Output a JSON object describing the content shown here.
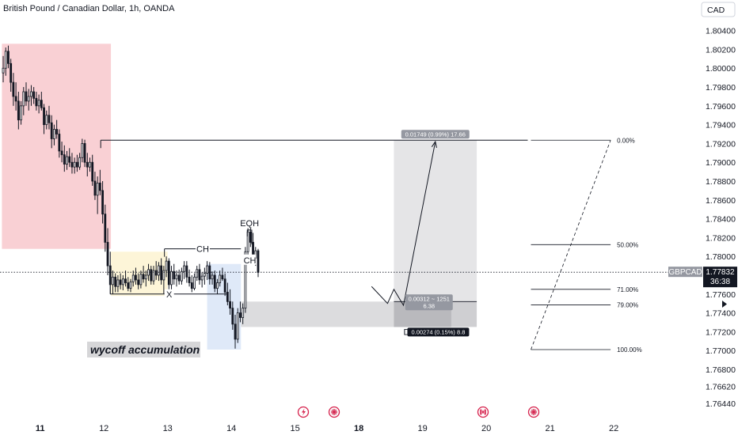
{
  "header": {
    "title": "British Pound / Canadian Dollar, 1h, OANDA",
    "currency": "CAD"
  },
  "chart_data": {
    "type": "candlestick",
    "symbol": "GBPCAD",
    "title": "British Pound / Canadian Dollar, 1h, OANDA",
    "ylim": [
      1.7627,
      1.8054
    ],
    "y_ticks": [
      "1.80400",
      "1.80200",
      "1.80000",
      "1.79800",
      "1.79600",
      "1.79400",
      "1.79200",
      "1.79000",
      "1.78800",
      "1.78600",
      "1.78400",
      "1.78200",
      "1.78000",
      "1.77800",
      "1.77600",
      "1.77400",
      "1.77200",
      "1.77000",
      "1.76800",
      "1.76620",
      "1.76440"
    ],
    "y_tick_values": [
      1.804,
      1.802,
      1.8,
      1.798,
      1.796,
      1.794,
      1.792,
      1.79,
      1.788,
      1.786,
      1.784,
      1.782,
      1.78,
      1.778,
      1.776,
      1.774,
      1.772,
      1.77,
      1.768,
      1.7662,
      1.7644
    ],
    "x_labels": [
      {
        "label": "11",
        "x": 11,
        "bold": true
      },
      {
        "label": "12",
        "x": 12,
        "bold": false
      },
      {
        "label": "13",
        "x": 13,
        "bold": false
      },
      {
        "label": "14",
        "x": 14,
        "bold": false
      },
      {
        "label": "15",
        "x": 15,
        "bold": false
      },
      {
        "label": "18",
        "x": 16,
        "bold": true
      },
      {
        "label": "19",
        "x": 17,
        "bold": false
      },
      {
        "label": "20",
        "x": 18,
        "bold": false
      },
      {
        "label": "21",
        "x": 19,
        "bold": false
      },
      {
        "label": "22",
        "x": 20,
        "bold": false
      }
    ],
    "xlim": [
      10.37,
      20.93
    ],
    "current_price": {
      "symbol": "GBPCAD",
      "value": "1.77832",
      "countdown": "36:38",
      "y": 1.77832
    },
    "candles": [
      {
        "x": 10.42,
        "o": 1.7995,
        "h": 1.8013,
        "l": 1.7985,
        "c": 1.8
      },
      {
        "x": 10.46,
        "o": 1.8,
        "h": 1.8022,
        "l": 1.7992,
        "c": 1.8018
      },
      {
        "x": 10.5,
        "o": 1.8018,
        "h": 1.8024,
        "l": 1.8,
        "c": 1.8005
      },
      {
        "x": 10.54,
        "o": 1.8005,
        "h": 1.801,
        "l": 1.7975,
        "c": 1.7985
      },
      {
        "x": 10.58,
        "o": 1.7985,
        "h": 1.7995,
        "l": 1.796,
        "c": 1.797
      },
      {
        "x": 10.62,
        "o": 1.797,
        "h": 1.7985,
        "l": 1.7955,
        "c": 1.7965
      },
      {
        "x": 10.66,
        "o": 1.7965,
        "h": 1.7975,
        "l": 1.7935,
        "c": 1.7945
      },
      {
        "x": 10.7,
        "o": 1.7945,
        "h": 1.7965,
        "l": 1.794,
        "c": 1.796
      },
      {
        "x": 10.74,
        "o": 1.796,
        "h": 1.798,
        "l": 1.795,
        "c": 1.7975
      },
      {
        "x": 10.78,
        "o": 1.7975,
        "h": 1.7985,
        "l": 1.796,
        "c": 1.7965
      },
      {
        "x": 10.82,
        "o": 1.7965,
        "h": 1.7978,
        "l": 1.7955,
        "c": 1.797
      },
      {
        "x": 10.86,
        "o": 1.797,
        "h": 1.7982,
        "l": 1.796,
        "c": 1.7975
      },
      {
        "x": 10.9,
        "o": 1.7975,
        "h": 1.798,
        "l": 1.7962,
        "c": 1.7968
      },
      {
        "x": 10.94,
        "o": 1.7968,
        "h": 1.7975,
        "l": 1.7955,
        "c": 1.796
      },
      {
        "x": 10.98,
        "o": 1.796,
        "h": 1.7972,
        "l": 1.7952,
        "c": 1.7966
      },
      {
        "x": 11.02,
        "o": 1.7966,
        "h": 1.7975,
        "l": 1.7955,
        "c": 1.7958
      },
      {
        "x": 11.06,
        "o": 1.7958,
        "h": 1.7962,
        "l": 1.793,
        "c": 1.794
      },
      {
        "x": 11.1,
        "o": 1.794,
        "h": 1.7955,
        "l": 1.7935,
        "c": 1.795
      },
      {
        "x": 11.14,
        "o": 1.795,
        "h": 1.796,
        "l": 1.7935,
        "c": 1.7942
      },
      {
        "x": 11.18,
        "o": 1.7942,
        "h": 1.795,
        "l": 1.7915,
        "c": 1.7925
      },
      {
        "x": 11.22,
        "o": 1.7925,
        "h": 1.794,
        "l": 1.7918,
        "c": 1.7935
      },
      {
        "x": 11.26,
        "o": 1.7935,
        "h": 1.7945,
        "l": 1.7925,
        "c": 1.793
      },
      {
        "x": 11.3,
        "o": 1.793,
        "h": 1.7935,
        "l": 1.7905,
        "c": 1.7912
      },
      {
        "x": 11.34,
        "o": 1.7912,
        "h": 1.7922,
        "l": 1.79,
        "c": 1.7908
      },
      {
        "x": 11.38,
        "o": 1.7908,
        "h": 1.7918,
        "l": 1.789,
        "c": 1.7898
      },
      {
        "x": 11.42,
        "o": 1.7898,
        "h": 1.7912,
        "l": 1.7892,
        "c": 1.7906
      },
      {
        "x": 11.46,
        "o": 1.7906,
        "h": 1.7915,
        "l": 1.7895,
        "c": 1.79
      },
      {
        "x": 11.5,
        "o": 1.79,
        "h": 1.791,
        "l": 1.7888,
        "c": 1.7895
      },
      {
        "x": 11.54,
        "o": 1.7895,
        "h": 1.7905,
        "l": 1.7888,
        "c": 1.79
      },
      {
        "x": 11.58,
        "o": 1.79,
        "h": 1.7908,
        "l": 1.789,
        "c": 1.7895
      },
      {
        "x": 11.62,
        "o": 1.7895,
        "h": 1.791,
        "l": 1.7892,
        "c": 1.7905
      },
      {
        "x": 11.66,
        "o": 1.7905,
        "h": 1.7925,
        "l": 1.79,
        "c": 1.792
      },
      {
        "x": 11.7,
        "o": 1.792,
        "h": 1.7924,
        "l": 1.7895,
        "c": 1.79
      },
      {
        "x": 11.74,
        "o": 1.79,
        "h": 1.791,
        "l": 1.7885,
        "c": 1.7895
      },
      {
        "x": 11.78,
        "o": 1.7895,
        "h": 1.7905,
        "l": 1.789,
        "c": 1.79
      },
      {
        "x": 11.82,
        "o": 1.79,
        "h": 1.7908,
        "l": 1.7875,
        "c": 1.788
      },
      {
        "x": 11.86,
        "o": 1.788,
        "h": 1.789,
        "l": 1.786,
        "c": 1.7865
      },
      {
        "x": 11.9,
        "o": 1.7865,
        "h": 1.7885,
        "l": 1.7845,
        "c": 1.7878
      },
      {
        "x": 11.94,
        "o": 1.7878,
        "h": 1.7892,
        "l": 1.7865,
        "c": 1.787
      },
      {
        "x": 11.98,
        "o": 1.787,
        "h": 1.788,
        "l": 1.7835,
        "c": 1.7845
      },
      {
        "x": 12.02,
        "o": 1.7845,
        "h": 1.7855,
        "l": 1.7805,
        "c": 1.7815
      },
      {
        "x": 12.06,
        "o": 1.7815,
        "h": 1.783,
        "l": 1.778,
        "c": 1.779
      },
      {
        "x": 12.1,
        "o": 1.779,
        "h": 1.7805,
        "l": 1.776,
        "c": 1.777
      },
      {
        "x": 12.14,
        "o": 1.777,
        "h": 1.7785,
        "l": 1.776,
        "c": 1.7778
      },
      {
        "x": 12.18,
        "o": 1.7778,
        "h": 1.7782,
        "l": 1.7762,
        "c": 1.7768
      },
      {
        "x": 12.22,
        "o": 1.7768,
        "h": 1.778,
        "l": 1.7762,
        "c": 1.7775
      },
      {
        "x": 12.26,
        "o": 1.7775,
        "h": 1.7782,
        "l": 1.7765,
        "c": 1.777
      },
      {
        "x": 12.3,
        "o": 1.777,
        "h": 1.778,
        "l": 1.7764,
        "c": 1.7776
      },
      {
        "x": 12.34,
        "o": 1.7776,
        "h": 1.7785,
        "l": 1.7768,
        "c": 1.7772
      },
      {
        "x": 12.38,
        "o": 1.7772,
        "h": 1.7778,
        "l": 1.7763,
        "c": 1.7766
      },
      {
        "x": 12.42,
        "o": 1.7766,
        "h": 1.7776,
        "l": 1.7762,
        "c": 1.7773
      },
      {
        "x": 12.46,
        "o": 1.7773,
        "h": 1.7785,
        "l": 1.7768,
        "c": 1.778
      },
      {
        "x": 12.5,
        "o": 1.778,
        "h": 1.7788,
        "l": 1.777,
        "c": 1.7775
      },
      {
        "x": 12.54,
        "o": 1.7775,
        "h": 1.7782,
        "l": 1.7765,
        "c": 1.777
      },
      {
        "x": 12.58,
        "o": 1.777,
        "h": 1.7785,
        "l": 1.7766,
        "c": 1.7781
      },
      {
        "x": 12.62,
        "o": 1.7781,
        "h": 1.779,
        "l": 1.7772,
        "c": 1.7776
      },
      {
        "x": 12.66,
        "o": 1.7776,
        "h": 1.7785,
        "l": 1.7768,
        "c": 1.778
      },
      {
        "x": 12.7,
        "o": 1.778,
        "h": 1.7792,
        "l": 1.7774,
        "c": 1.7786
      },
      {
        "x": 12.74,
        "o": 1.7786,
        "h": 1.779,
        "l": 1.777,
        "c": 1.7774
      },
      {
        "x": 12.78,
        "o": 1.7774,
        "h": 1.779,
        "l": 1.777,
        "c": 1.7785
      },
      {
        "x": 12.82,
        "o": 1.7785,
        "h": 1.7795,
        "l": 1.7775,
        "c": 1.778
      },
      {
        "x": 12.86,
        "o": 1.778,
        "h": 1.7794,
        "l": 1.7774,
        "c": 1.779
      },
      {
        "x": 12.9,
        "o": 1.779,
        "h": 1.7798,
        "l": 1.777,
        "c": 1.7775
      },
      {
        "x": 12.94,
        "o": 1.7775,
        "h": 1.779,
        "l": 1.776,
        "c": 1.7785
      },
      {
        "x": 12.98,
        "o": 1.7785,
        "h": 1.78,
        "l": 1.7778,
        "c": 1.7795
      },
      {
        "x": 13.02,
        "o": 1.7795,
        "h": 1.7798,
        "l": 1.7765,
        "c": 1.777
      },
      {
        "x": 13.06,
        "o": 1.777,
        "h": 1.779,
        "l": 1.7764,
        "c": 1.7784
      },
      {
        "x": 13.1,
        "o": 1.7784,
        "h": 1.7792,
        "l": 1.777,
        "c": 1.7776
      },
      {
        "x": 13.14,
        "o": 1.7776,
        "h": 1.7785,
        "l": 1.7768,
        "c": 1.778
      },
      {
        "x": 13.18,
        "o": 1.778,
        "h": 1.7786,
        "l": 1.777,
        "c": 1.7774
      },
      {
        "x": 13.22,
        "o": 1.7774,
        "h": 1.7788,
        "l": 1.777,
        "c": 1.7784
      },
      {
        "x": 13.26,
        "o": 1.7784,
        "h": 1.7795,
        "l": 1.7776,
        "c": 1.779
      },
      {
        "x": 13.3,
        "o": 1.779,
        "h": 1.7795,
        "l": 1.7772,
        "c": 1.7778
      },
      {
        "x": 13.34,
        "o": 1.7778,
        "h": 1.7786,
        "l": 1.7768,
        "c": 1.7772
      },
      {
        "x": 13.38,
        "o": 1.7772,
        "h": 1.778,
        "l": 1.7762,
        "c": 1.7766
      },
      {
        "x": 13.42,
        "o": 1.7766,
        "h": 1.7782,
        "l": 1.7764,
        "c": 1.7778
      },
      {
        "x": 13.46,
        "o": 1.7778,
        "h": 1.779,
        "l": 1.7774,
        "c": 1.7786
      },
      {
        "x": 13.5,
        "o": 1.7786,
        "h": 1.7792,
        "l": 1.777,
        "c": 1.7775
      },
      {
        "x": 13.54,
        "o": 1.7775,
        "h": 1.7783,
        "l": 1.7767,
        "c": 1.7779
      },
      {
        "x": 13.58,
        "o": 1.7779,
        "h": 1.7788,
        "l": 1.777,
        "c": 1.7782
      },
      {
        "x": 13.62,
        "o": 1.7782,
        "h": 1.7795,
        "l": 1.7775,
        "c": 1.779
      },
      {
        "x": 13.66,
        "o": 1.779,
        "h": 1.7794,
        "l": 1.777,
        "c": 1.7776
      },
      {
        "x": 13.7,
        "o": 1.7776,
        "h": 1.7784,
        "l": 1.777,
        "c": 1.778
      },
      {
        "x": 13.74,
        "o": 1.778,
        "h": 1.7785,
        "l": 1.7762,
        "c": 1.7766
      },
      {
        "x": 13.78,
        "o": 1.7766,
        "h": 1.7776,
        "l": 1.776,
        "c": 1.7772
      },
      {
        "x": 13.82,
        "o": 1.7772,
        "h": 1.7785,
        "l": 1.7768,
        "c": 1.778
      },
      {
        "x": 13.86,
        "o": 1.778,
        "h": 1.7788,
        "l": 1.7774,
        "c": 1.7776
      },
      {
        "x": 13.9,
        "o": 1.7776,
        "h": 1.7782,
        "l": 1.7758,
        "c": 1.7762
      },
      {
        "x": 13.94,
        "o": 1.7762,
        "h": 1.7772,
        "l": 1.7748,
        "c": 1.7752
      },
      {
        "x": 13.98,
        "o": 1.7752,
        "h": 1.7765,
        "l": 1.7738,
        "c": 1.7745
      },
      {
        "x": 14.02,
        "o": 1.7745,
        "h": 1.7752,
        "l": 1.7722,
        "c": 1.7728
      },
      {
        "x": 14.06,
        "o": 1.7728,
        "h": 1.7738,
        "l": 1.7702,
        "c": 1.7712
      },
      {
        "x": 14.1,
        "o": 1.7712,
        "h": 1.7745,
        "l": 1.7708,
        "c": 1.774
      },
      {
        "x": 14.14,
        "o": 1.774,
        "h": 1.7752,
        "l": 1.773,
        "c": 1.7735
      },
      {
        "x": 14.18,
        "o": 1.7735,
        "h": 1.775,
        "l": 1.7728,
        "c": 1.7745
      },
      {
        "x": 14.22,
        "o": 1.7745,
        "h": 1.781,
        "l": 1.774,
        "c": 1.7805
      },
      {
        "x": 14.26,
        "o": 1.7805,
        "h": 1.783,
        "l": 1.7798,
        "c": 1.7826
      },
      {
        "x": 14.3,
        "o": 1.7826,
        "h": 1.783,
        "l": 1.781,
        "c": 1.7815
      },
      {
        "x": 14.34,
        "o": 1.7815,
        "h": 1.7825,
        "l": 1.7792,
        "c": 1.7798
      },
      {
        "x": 14.38,
        "o": 1.7798,
        "h": 1.781,
        "l": 1.779,
        "c": 1.7806
      },
      {
        "x": 14.42,
        "o": 1.7806,
        "h": 1.7808,
        "l": 1.7778,
        "c": 1.7783
      }
    ],
    "shapes": {
      "red_zone": {
        "x0": 10.4,
        "x1": 12.11,
        "y0": 1.8026,
        "y1": 1.7808,
        "color": "#f9d0d4"
      },
      "yellow_zone": {
        "x0": 12.11,
        "x1": 13.0,
        "y0": 1.7805,
        "y1": 1.7758,
        "color": "#fdf5d8"
      },
      "blue_zone": {
        "x0": 13.62,
        "x1": 14.15,
        "y0": 1.7792,
        "y1": 1.7701,
        "color": "#dfe9f8"
      },
      "grey_band": {
        "x0": 14.15,
        "x1": 16.85,
        "y0": 1.7752,
        "y1": 1.7725,
        "color": "#dcdcde"
      },
      "long_box_profit": {
        "x0": 16.55,
        "x1": 17.85,
        "y0": 1.79235,
        "y1": 1.7752,
        "color": "#e5e5e7"
      },
      "long_box_loss": {
        "x0": 16.55,
        "x1": 17.85,
        "y0": 1.7752,
        "y1": 1.7725,
        "color": "#cfcfd2"
      },
      "long_box_entry_x1": 17.45
    },
    "lines": {
      "top_line": {
        "x0": 11.95,
        "x1": 18.65,
        "y": 1.79235
      },
      "x_line": {
        "x0": 12.1,
        "x1": 13.95,
        "y": 1.776
      },
      "ch_line": {
        "x0": 12.95,
        "x1": 14.15,
        "y": 1.7808
      },
      "eqh_y": 1.7828,
      "ch2_y": 1.7797
    },
    "fib": {
      "x0": 18.7,
      "x1": 19.95,
      "levels": [
        {
          "label": "0.00%",
          "y": 1.79235
        },
        {
          "label": "50.00%",
          "y": 1.78125
        },
        {
          "label": "71.00%",
          "y": 1.7765
        },
        {
          "label": "79.00%",
          "y": 1.77485
        },
        {
          "label": "100.00%",
          "y": 1.7701
        }
      ]
    },
    "projection": [
      {
        "x": 16.2,
        "y": 1.7768
      },
      {
        "x": 16.45,
        "y": 1.775
      },
      {
        "x": 16.55,
        "y": 1.7765
      },
      {
        "x": 16.7,
        "y": 1.7748
      },
      {
        "x": 17.2,
        "y": 1.7922
      }
    ],
    "labels": {
      "eqh": "EQH",
      "ch_top": "CH",
      "ch_right": "CH",
      "x_mark": "X",
      "wycoff": "wycoff accumulation",
      "target": "0.01749 (0.99%) 17.66",
      "entry_line1": "0.00312 ~ 1251",
      "entry_line2": "6.38",
      "stop": "0.00274 (0.15%) 8.8",
      "stop_prefix": "D"
    }
  }
}
